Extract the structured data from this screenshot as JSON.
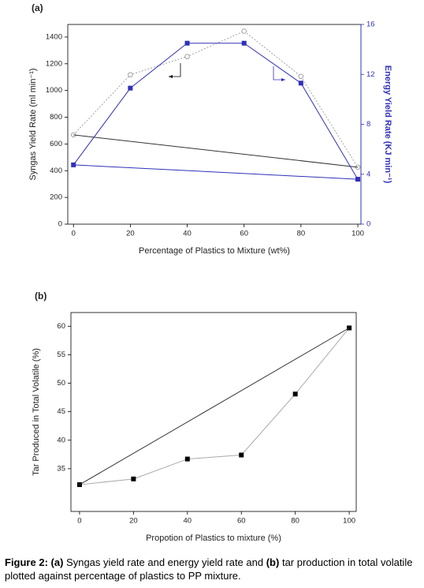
{
  "chart_data": [
    {
      "type": "line",
      "panel_label": "(a)",
      "x_label": "Percentage of Plastics to Mixture (wt%)",
      "y_label": "Syngas Yield Rate (ml min⁻¹)",
      "y2_label": "Energy Yield Rate (KJ min⁻¹)",
      "y2_color": "#3030b8",
      "xlim": [
        -2,
        101.1
      ],
      "xticks": [
        0,
        20,
        40,
        60,
        80,
        100
      ],
      "ylim": [
        0,
        1494
      ],
      "yticks": [
        0,
        200,
        400,
        600,
        800,
        1000,
        1200,
        1400
      ],
      "y2lim": [
        0,
        16
      ],
      "y2ticks": [
        0,
        4,
        8,
        12,
        16
      ],
      "series": [
        {
          "x": [
            0,
            20,
            40,
            60,
            80,
            100
          ],
          "values": [
            668,
            1118,
            1254,
            1444,
            1106,
            426
          ],
          "color": "#999999",
          "line": "dotted",
          "marker": "circle-open"
        },
        {
          "x": [
            0,
            100
          ],
          "values": [
            668,
            426
          ],
          "color": "#333333",
          "line": "solid"
        },
        {
          "x": [
            0,
            20,
            40,
            60,
            80,
            100
          ],
          "values": [
            4.75,
            10.9,
            14.5,
            14.5,
            11.3,
            3.6
          ],
          "color": "#3030b8",
          "line": "solid",
          "marker": "square",
          "axis": "y2"
        },
        {
          "x": [
            0,
            100
          ],
          "values": [
            4.75,
            3.6
          ],
          "color": "#3030b8",
          "line": "solid",
          "axis": "y2"
        }
      ]
    },
    {
      "type": "line",
      "panel_label": "(b)",
      "x_label": "Propotion of Plastics to mixture (%)",
      "y_label": "Tar Produced in Total Volatile (%)",
      "xlim": [
        -3.2,
        102.6
      ],
      "xticks": [
        0,
        20,
        40,
        60,
        80,
        100
      ],
      "ylim": [
        27.5,
        62.4
      ],
      "yticks": [
        35,
        40,
        45,
        50,
        55,
        60
      ],
      "series": [
        {
          "x": [
            0,
            20,
            40,
            60,
            80,
            100
          ],
          "values": [
            32.2,
            33.2,
            36.7,
            37.4,
            48.1,
            59.7
          ],
          "color": "#aaaaaa",
          "line": "solid",
          "marker": "square",
          "marker_color": "#000000"
        },
        {
          "x": [
            0,
            100
          ],
          "values": [
            32.2,
            59.7
          ],
          "color": "#333333",
          "line": "solid"
        }
      ]
    }
  ],
  "caption": {
    "bold1": "Figure 2:",
    "bold2": "(a)",
    "text1": "Syngas yield rate and energy yield rate and",
    "bold3": "(b)",
    "text2": "tar production in total volatile plotted against percentage of plastics to PP mixture."
  }
}
